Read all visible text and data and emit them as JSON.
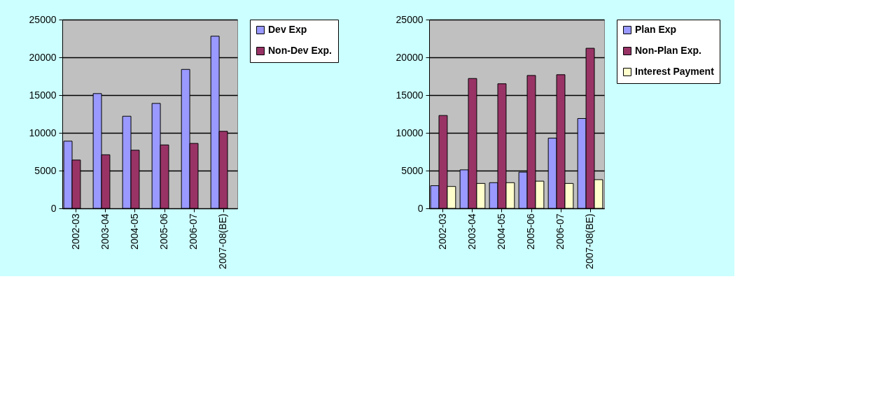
{
  "chart_data": [
    {
      "type": "bar",
      "categories": [
        "2002-03",
        "2003-04",
        "2004-05",
        "2005-06",
        "2006-07",
        "2007-08(BE)"
      ],
      "series": [
        {
          "name": "Dev Exp",
          "color": "#9999ff",
          "values": [
            8900,
            15200,
            12200,
            13900,
            18400,
            22800
          ]
        },
        {
          "name": "Non-Dev Exp.",
          "color": "#993366",
          "values": [
            6400,
            7100,
            7700,
            8400,
            8600,
            10200
          ]
        }
      ],
      "ylim": [
        0,
        25000
      ],
      "yticks": [
        0,
        5000,
        10000,
        15000,
        20000,
        25000
      ],
      "grid": "y",
      "legend": "right"
    },
    {
      "type": "bar",
      "categories": [
        "2002-03",
        "2003-04",
        "2004-05",
        "2005-06",
        "2006-07",
        "2007-08(BE)"
      ],
      "series": [
        {
          "name": "Plan Exp",
          "color": "#9999ff",
          "values": [
            3000,
            5100,
            3400,
            4800,
            9300,
            11900
          ]
        },
        {
          "name": "Non-Plan Exp.",
          "color": "#993366",
          "values": [
            12300,
            17200,
            16500,
            17600,
            17700,
            21200
          ]
        },
        {
          "name": "Interest Payment",
          "color": "#ffffcc",
          "values": [
            2900,
            3300,
            3400,
            3600,
            3300,
            3800
          ]
        }
      ],
      "ylim": [
        0,
        25000
      ],
      "yticks": [
        0,
        5000,
        10000,
        15000,
        20000,
        25000
      ],
      "grid": "y",
      "legend": "right"
    }
  ]
}
